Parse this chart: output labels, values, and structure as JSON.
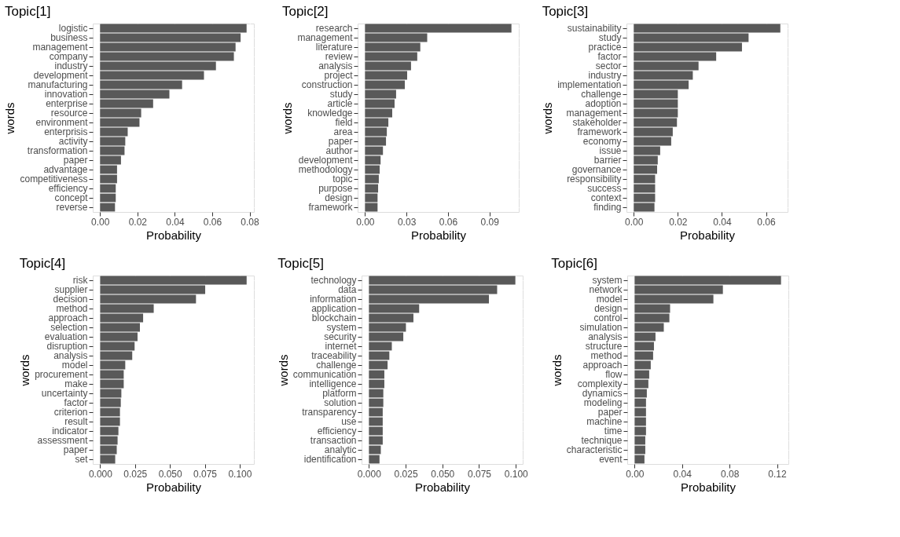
{
  "chart_data": [
    {
      "type": "bar",
      "orientation": "horizontal",
      "title": "Topic[1]",
      "xlabel": "Probability",
      "ylabel": "words",
      "color": "#595959",
      "grid": true,
      "categories": [
        "logistic",
        "business",
        "management",
        "company",
        "industry",
        "development",
        "manufacturing",
        "innovation",
        "enterprise",
        "resource",
        "environment",
        "enterprisis",
        "activity",
        "transformation",
        "paper",
        "advantage",
        "competitiveness",
        "efficiency",
        "concept",
        "reverse"
      ],
      "values": [
        0.0784,
        0.0752,
        0.0725,
        0.0716,
        0.062,
        0.0556,
        0.0439,
        0.0371,
        0.0284,
        0.022,
        0.0211,
        0.0148,
        0.0135,
        0.0131,
        0.0112,
        0.0091,
        0.0091,
        0.0084,
        0.0084,
        0.008
      ],
      "xlim": [
        -0.0039,
        0.0823
      ],
      "xticks": [
        {
          "value": 0,
          "label": "0.00"
        },
        {
          "value": 0.02,
          "label": "0.02"
        },
        {
          "value": 0.04,
          "label": "0.04"
        },
        {
          "value": 0.06,
          "label": "0.06"
        },
        {
          "value": 0.08,
          "label": "0.08"
        }
      ]
    },
    {
      "type": "bar",
      "orientation": "horizontal",
      "title": "Topic[2]",
      "xlabel": "Probability",
      "ylabel": "words",
      "color": "#595959",
      "grid": true,
      "categories": [
        "research",
        "management",
        "literature",
        "review",
        "analysis",
        "project",
        "construction",
        "study",
        "article",
        "knowledge",
        "field",
        "area",
        "paper",
        "author",
        "development",
        "methodology",
        "topic",
        "purpose",
        "design",
        "framework"
      ],
      "values": [
        0.1059,
        0.045,
        0.04,
        0.0378,
        0.0333,
        0.0305,
        0.0288,
        0.0225,
        0.0214,
        0.0197,
        0.0169,
        0.0158,
        0.0152,
        0.013,
        0.0113,
        0.0106,
        0.01,
        0.0095,
        0.0091,
        0.0091
      ],
      "xlim": [
        -0.0053,
        0.1112
      ],
      "xticks": [
        {
          "value": 0,
          "label": "0.00"
        },
        {
          "value": 0.03,
          "label": "0.03"
        },
        {
          "value": 0.06,
          "label": "0.06"
        },
        {
          "value": 0.09,
          "label": "0.09"
        }
      ]
    },
    {
      "type": "bar",
      "orientation": "horizontal",
      "title": "Topic[3]",
      "xlabel": "Probability",
      "ylabel": "words",
      "color": "#595959",
      "grid": true,
      "categories": [
        "sustainability",
        "study",
        "practice",
        "factor",
        "sector",
        "industry",
        "implementation",
        "challenge",
        "adoption",
        "management",
        "stakeholder",
        "framework",
        "economy",
        "issue",
        "barrier",
        "governance",
        "responsibility",
        "success",
        "context",
        "finding"
      ],
      "values": [
        0.0665,
        0.0521,
        0.0491,
        0.0374,
        0.0294,
        0.0268,
        0.0249,
        0.02,
        0.02,
        0.02,
        0.0196,
        0.0177,
        0.017,
        0.012,
        0.0109,
        0.0106,
        0.0097,
        0.0097,
        0.0097,
        0.0094
      ],
      "xlim": [
        -0.0033,
        0.0698
      ],
      "xticks": [
        {
          "value": 0,
          "label": "0.00"
        },
        {
          "value": 0.02,
          "label": "0.02"
        },
        {
          "value": 0.04,
          "label": "0.04"
        },
        {
          "value": 0.06,
          "label": "0.06"
        }
      ]
    },
    {
      "type": "bar",
      "orientation": "horizontal",
      "title": "Topic[4]",
      "xlabel": "Probability",
      "ylabel": "words",
      "color": "#595959",
      "grid": true,
      "categories": [
        "risk",
        "supplier",
        "decision",
        "method",
        "approach",
        "selection",
        "evaluation",
        "disruption",
        "analysis",
        "model",
        "procurement",
        "make",
        "uncertainty",
        "factor",
        "criterion",
        "result",
        "indicator",
        "assessment",
        "paper",
        "set"
      ],
      "values": [
        0.105,
        0.0753,
        0.0687,
        0.0384,
        0.0308,
        0.0285,
        0.0268,
        0.0247,
        0.023,
        0.018,
        0.0169,
        0.0169,
        0.0152,
        0.0148,
        0.0142,
        0.0142,
        0.0131,
        0.0125,
        0.0119,
        0.0108
      ],
      "xlim": [
        -0.0053,
        0.1102
      ],
      "xticks": [
        {
          "value": 0,
          "label": "0.000"
        },
        {
          "value": 0.025,
          "label": "0.025"
        },
        {
          "value": 0.05,
          "label": "0.050"
        },
        {
          "value": 0.075,
          "label": "0.075"
        },
        {
          "value": 0.1,
          "label": "0.100"
        }
      ]
    },
    {
      "type": "bar",
      "orientation": "horizontal",
      "title": "Topic[5]",
      "xlabel": "Probability",
      "ylabel": "words",
      "color": "#595959",
      "grid": true,
      "categories": [
        "technology",
        "data",
        "information",
        "application",
        "blockchain",
        "system",
        "security",
        "internet",
        "traceability",
        "challenge",
        "communication",
        "intelligence",
        "platform",
        "solution",
        "transparency",
        "use",
        "efficiency",
        "transaction",
        "analytic",
        "identification"
      ],
      "values": [
        0.0997,
        0.0873,
        0.0817,
        0.0342,
        0.0303,
        0.0252,
        0.0234,
        0.0156,
        0.0139,
        0.0127,
        0.0105,
        0.0105,
        0.0098,
        0.0098,
        0.0094,
        0.0094,
        0.0094,
        0.0094,
        0.0081,
        0.0072
      ],
      "xlim": [
        -0.005,
        0.1047
      ],
      "xticks": [
        {
          "value": 0,
          "label": "0.000"
        },
        {
          "value": 0.025,
          "label": "0.025"
        },
        {
          "value": 0.05,
          "label": "0.050"
        },
        {
          "value": 0.075,
          "label": "0.075"
        },
        {
          "value": 0.1,
          "label": "0.100"
        }
      ]
    },
    {
      "type": "bar",
      "orientation": "horizontal",
      "title": "Topic[6]",
      "xlabel": "Probability",
      "ylabel": "words",
      "color": "#595959",
      "grid": true,
      "categories": [
        "system",
        "network",
        "model",
        "design",
        "control",
        "simulation",
        "analysis",
        "structure",
        "method",
        "approach",
        "flow",
        "complexity",
        "dynamics",
        "modeling",
        "paper",
        "machine",
        "time",
        "technique",
        "characteristic",
        "event"
      ],
      "values": [
        0.1234,
        0.0744,
        0.0664,
        0.0299,
        0.0293,
        0.0246,
        0.0176,
        0.0163,
        0.0156,
        0.0136,
        0.0123,
        0.0116,
        0.0103,
        0.0096,
        0.0096,
        0.0096,
        0.0096,
        0.009,
        0.009,
        0.0083
      ],
      "xlim": [
        -0.0062,
        0.1296
      ],
      "xticks": [
        {
          "value": 0,
          "label": "0.00"
        },
        {
          "value": 0.04,
          "label": "0.04"
        },
        {
          "value": 0.08,
          "label": "0.08"
        },
        {
          "value": 0.12,
          "label": "0.12"
        }
      ]
    }
  ]
}
